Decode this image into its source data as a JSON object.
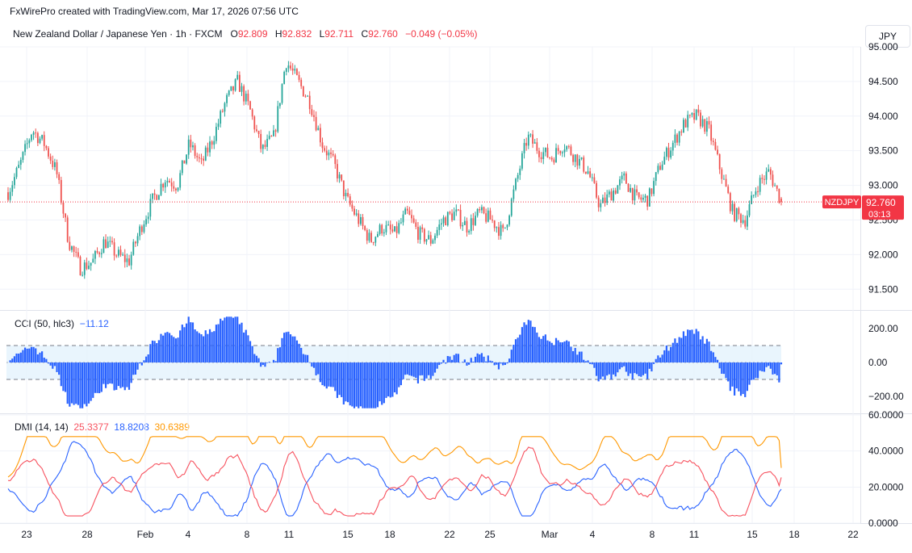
{
  "header": "FxWirePro created with TradingView.com, Mar 17, 2026 07:56 UTC",
  "currency_button": "JPY",
  "legend": {
    "title": "New Zealand Dollar / Japanese Yen · 1h · FXCM",
    "o_label": "O",
    "o_value": "92.809",
    "h_label": "H",
    "h_value": "92.832",
    "l_label": "L",
    "l_value": "92.711",
    "c_label": "C",
    "c_value": "92.760",
    "change": "−0.049 (−0.05%)"
  },
  "price_tag": {
    "symbol": "NZDJPY",
    "price": "92.760",
    "countdown": "03:13"
  },
  "cci_legend": {
    "name": "CCI (50, hlc3)",
    "value": "−11.12"
  },
  "dmi_legend": {
    "name": "DMI (14, 14)",
    "plus": "25.3377",
    "minus": "18.8208",
    "adx": "30.6389"
  },
  "colors": {
    "up": "#26a69a",
    "down": "#ef5350",
    "cci": "#2962ff",
    "plus_di": "#2962ff",
    "minus_di": "#f7525f",
    "adx": "#ff9800",
    "price_line": "#f23645"
  },
  "chart_data": [
    {
      "type": "candlestick",
      "title": "New Zealand Dollar / Japanese Yen · 1h · FXCM",
      "ylim": [
        91.2,
        95.0
      ],
      "y_ticks": [
        "95.000",
        "94.500",
        "94.000",
        "93.500",
        "93.000",
        "92.500",
        "92.000",
        "91.500"
      ],
      "x_ticks": [
        "23",
        "28",
        "Feb",
        "4",
        "8",
        "11",
        "15",
        "18",
        "22",
        "25",
        "Mar",
        "4",
        "8",
        "11",
        "15",
        "18",
        "22"
      ],
      "close_path": [
        92.9,
        93.3,
        93.8,
        93.6,
        93.2,
        92.2,
        91.8,
        91.9,
        92.2,
        92.0,
        91.9,
        92.4,
        92.8,
        93.1,
        93.0,
        93.6,
        93.3,
        93.7,
        94.2,
        94.5,
        94.1,
        93.5,
        93.7,
        94.8,
        94.5,
        94.2,
        93.6,
        93.3,
        92.8,
        92.5,
        92.2,
        92.4,
        92.3,
        92.6,
        92.3,
        92.2,
        92.5,
        92.6,
        92.4,
        92.6,
        92.5,
        92.3,
        93.0,
        93.7,
        93.5,
        93.4,
        93.6,
        93.4,
        93.2,
        92.7,
        92.9,
        93.1,
        92.8,
        92.8,
        93.3,
        93.6,
        93.9,
        94.0,
        93.8,
        93.2,
        92.6,
        92.5,
        93.0,
        93.2,
        92.76
      ],
      "last": {
        "open": 92.809,
        "high": 92.832,
        "low": 92.711,
        "close": 92.76
      }
    },
    {
      "type": "area",
      "title": "CCI (50, hlc3)",
      "ylim": [
        -300,
        300
      ],
      "y_ticks": [
        "200.00",
        "0.00",
        "−200.00"
      ],
      "bands": [
        100,
        -100
      ],
      "last": -11.12
    },
    {
      "type": "line",
      "title": "DMI (14, 14)",
      "ylim": [
        0,
        60
      ],
      "y_ticks": [
        "60.0000",
        "40.0000",
        "20.0000",
        "0.0000"
      ],
      "series": [
        {
          "name": "+DI",
          "last": 25.3377
        },
        {
          "name": "−DI",
          "last": 18.8208
        },
        {
          "name": "ADX",
          "last": 30.6389
        }
      ]
    }
  ]
}
